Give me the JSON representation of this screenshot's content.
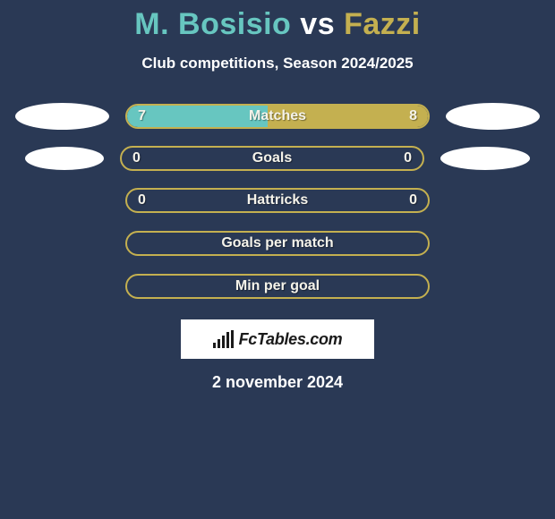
{
  "title": {
    "player1": "M. Bosisio",
    "vs": "vs",
    "player2": "Fazzi"
  },
  "subtitle": "Club competitions, Season 2024/2025",
  "colors": {
    "player1": "#67c6c0",
    "player2": "#c4b050",
    "bar_bg": "#2a3955",
    "text": "#f5f3ea"
  },
  "stats": [
    {
      "label": "Matches",
      "left_val": "7",
      "right_val": "8",
      "left_pct": 46.7,
      "right_pct": 53.3,
      "show_ellipses": true,
      "ellipse_left_small": false,
      "ellipse_right_small": false
    },
    {
      "label": "Goals",
      "left_val": "0",
      "right_val": "0",
      "left_pct": 0,
      "right_pct": 0,
      "show_ellipses": true,
      "ellipse_left_small": true,
      "ellipse_right_small": true
    },
    {
      "label": "Hattricks",
      "left_val": "0",
      "right_val": "0",
      "left_pct": 0,
      "right_pct": 0,
      "show_ellipses": false
    },
    {
      "label": "Goals per match",
      "left_val": "",
      "right_val": "",
      "left_pct": 0,
      "right_pct": 0,
      "show_ellipses": false
    },
    {
      "label": "Min per goal",
      "left_val": "",
      "right_val": "",
      "left_pct": 0,
      "right_pct": 0,
      "show_ellipses": false
    }
  ],
  "logo_text": "FcTables.com",
  "date": "2 november 2024",
  "logo_bar_heights": [
    6,
    10,
    14,
    18,
    20
  ]
}
